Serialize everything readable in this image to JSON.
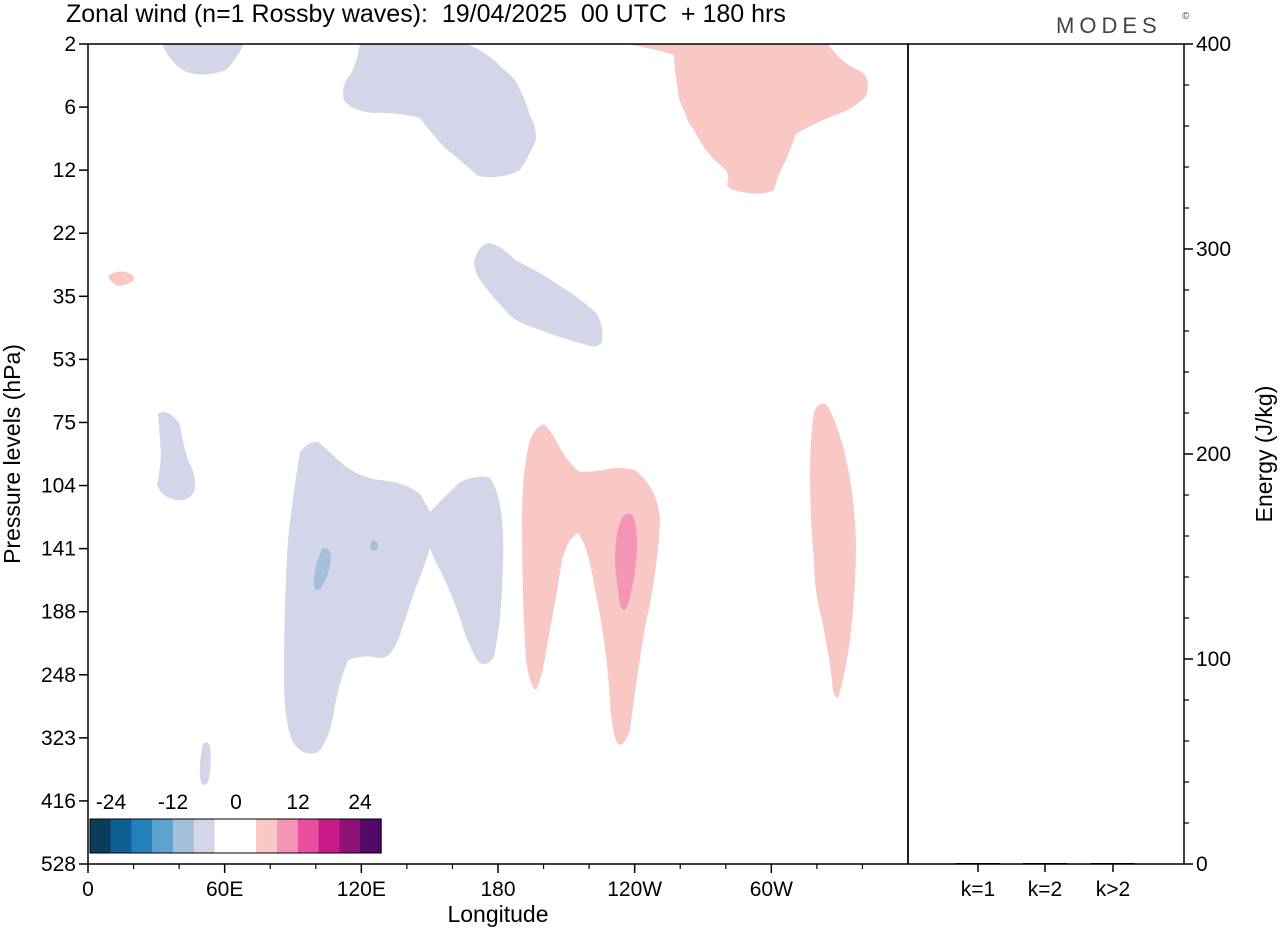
{
  "chart_data": {
    "type": "heatmap",
    "title": "Zonal wind (n=1 Rossby waves):  19/04/2025  00 UTC  + 180 hrs",
    "logo": "MODES",
    "logo_mark": "©",
    "xlabel": "Longitude",
    "ylabel": "Pressure levels (hPa)",
    "x_ticks": [
      "0",
      "60E",
      "120E",
      "180",
      "120W",
      "60W"
    ],
    "x_tick_degrees": [
      0,
      60,
      120,
      180,
      240,
      300
    ],
    "xlim": [
      0,
      360
    ],
    "y_ticks": [
      "2",
      "6",
      "12",
      "22",
      "35",
      "53",
      "75",
      "104",
      "141",
      "188",
      "248",
      "323",
      "416",
      "528"
    ],
    "y_scale": "pressure levels (inverted)",
    "energy_panel": {
      "ylabel": "Energy (J/kg)",
      "y_ticks": [
        "0",
        "100",
        "200",
        "300",
        "400"
      ],
      "y_tick_values": [
        0,
        100,
        200,
        300,
        400
      ],
      "ylim": [
        0,
        400
      ],
      "categories": [
        "k=1",
        "k=2",
        "k>2"
      ],
      "values": [
        0,
        0,
        0
      ]
    },
    "colorbar": {
      "labels": [
        "-24",
        "-12",
        "0",
        "12",
        "24"
      ],
      "colors": [
        "#0a3d5c",
        "#0d5e92",
        "#2380bd",
        "#5fa2ce",
        "#a4bfdc",
        "#d3d5e8",
        "#ffffff",
        "#ffffff",
        "#f9c8c4",
        "#f595b6",
        "#e84f9e",
        "#c81b87",
        "#8e1177",
        "#520866"
      ]
    },
    "regions": [
      {
        "sign": "negative",
        "level": "weak",
        "lon_range": [
          31,
          67
        ],
        "levels": [
          "2",
          "4"
        ]
      },
      {
        "sign": "negative",
        "level": "weak",
        "lon_range": [
          112,
          197
        ],
        "levels": [
          "2",
          "16"
        ]
      },
      {
        "sign": "positive",
        "level": "weak",
        "lon_range": [
          238,
          342
        ],
        "levels": [
          "2",
          "18"
        ]
      },
      {
        "sign": "positive",
        "level": "weak",
        "lon_range": [
          9,
          21
        ],
        "levels": [
          "30",
          "34"
        ]
      },
      {
        "sign": "negative",
        "level": "weak",
        "lon_range": [
          169,
          226
        ],
        "levels": [
          "24",
          "55"
        ]
      },
      {
        "sign": "negative",
        "level": "weak",
        "lon_range": [
          30,
          48
        ],
        "levels": [
          "72",
          "110"
        ]
      },
      {
        "sign": "negative",
        "level": "weak",
        "lon_range": [
          86,
          183
        ],
        "levels": [
          "95",
          "330"
        ]
      },
      {
        "sign": "negative",
        "level": "moderate",
        "lon_range": [
          98,
          108
        ],
        "levels": [
          "140",
          "175"
        ]
      },
      {
        "sign": "positive",
        "level": "weak",
        "lon_range": [
          193,
          250
        ],
        "levels": [
          "80",
          "320"
        ]
      },
      {
        "sign": "positive",
        "level": "moderate",
        "lon_range": [
          231,
          241
        ],
        "levels": [
          "120",
          "185"
        ]
      },
      {
        "sign": "positive",
        "level": "weak",
        "lon_range": [
          318,
          336
        ],
        "levels": [
          "70",
          "250"
        ]
      },
      {
        "sign": "negative",
        "level": "weak",
        "lon_range": [
          49,
          54
        ],
        "levels": [
          "320",
          "380"
        ]
      }
    ]
  }
}
